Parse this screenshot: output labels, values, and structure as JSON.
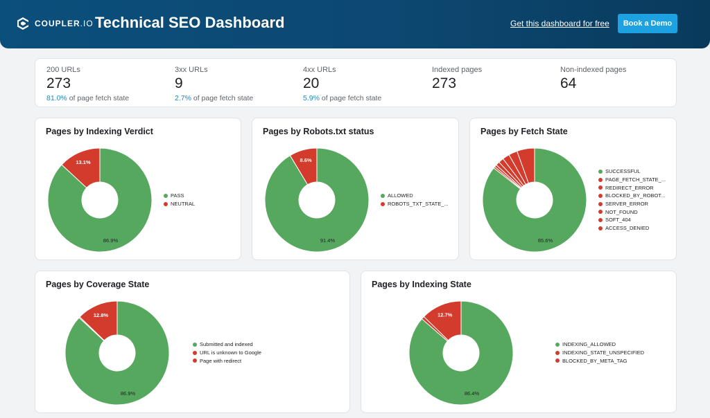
{
  "header": {
    "logo_main": "COUPLER",
    "logo_suffix": ".IO",
    "title": "Technical SEO Dashboard",
    "free_link": "Get this dashboard for free",
    "demo_button": "Book a Demo"
  },
  "kpis": [
    {
      "label": "200 URLs",
      "value": "273",
      "pct": "81.0%",
      "sub": " of page fetch state"
    },
    {
      "label": "3xx URLs",
      "value": "9",
      "pct": "2.7%",
      "sub": " of page fetch state"
    },
    {
      "label": "4xx URLs",
      "value": "20",
      "pct": "5.9%",
      "sub": " of page fetch state"
    },
    {
      "label": "Indexed pages",
      "value": "273"
    },
    {
      "label": "Non-indexed pages",
      "value": "64"
    }
  ],
  "colors": {
    "green": "#57a85f",
    "red": "#d33b2c"
  },
  "chart_data": [
    {
      "type": "pie",
      "title": "Pages by Indexing Verdict",
      "categories": [
        "PASS",
        "NEUTRAL"
      ],
      "values": [
        86.9,
        13.1
      ],
      "labels": [
        "86.9%",
        "13.1%"
      ],
      "legend": "right"
    },
    {
      "type": "pie",
      "title": "Pages by Robots.txt status",
      "categories": [
        "ALLOWED",
        "ROBOTS_TXT_STATE_..."
      ],
      "values": [
        91.4,
        8.6
      ],
      "labels": [
        "91.4%",
        "8.6%"
      ],
      "legend": "right"
    },
    {
      "type": "pie",
      "title": "Pages by Fetch State",
      "categories": [
        "SUCCESSFUL",
        "PAGE_FETCH_STATE_...",
        "REDIRECT_ERROR",
        "BLOCKED_BY_ROBOT...",
        "SERVER_ERROR",
        "NOT_FOUND",
        "SOFT_404",
        "ACCESS_DENIED"
      ],
      "values": [
        85.6,
        5.5,
        2.7,
        2.2,
        1.6,
        1.2,
        0.7,
        0.5
      ],
      "labels": [
        "85.6%",
        "",
        "",
        "",
        "",
        "",
        "",
        ""
      ],
      "legend": "right"
    },
    {
      "type": "pie",
      "title": "Pages by Coverage State",
      "categories": [
        "Submitted and indexed",
        "URL is unknown to Google",
        "Page with redirect"
      ],
      "values": [
        86.9,
        12.8,
        0.3
      ],
      "labels": [
        "86.9%",
        "12.8%",
        ""
      ],
      "legend": "right"
    },
    {
      "type": "pie",
      "title": "Pages by Indexing State",
      "categories": [
        "INDEXING_ALLOWED",
        "INDEXING_STATE_UNSPECIFIED",
        "BLOCKED_BY_META_TAG"
      ],
      "values": [
        86.4,
        12.7,
        0.9
      ],
      "labels": [
        "86.4%",
        "12.7%",
        ""
      ],
      "legend": "right"
    }
  ]
}
